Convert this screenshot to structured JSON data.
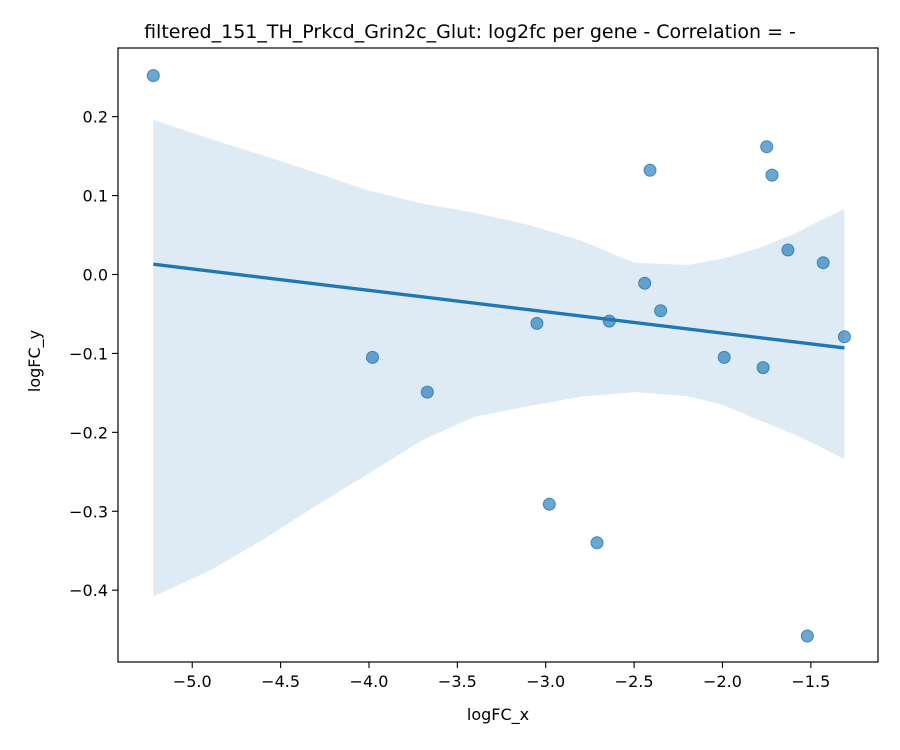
{
  "chart_data": {
    "type": "scatter",
    "title": "filtered_151_TH_Prkcd_Grin2c_Glut: log2fc per gene - Correlation = -",
    "xlabel": "logFC_x",
    "ylabel": "logFC_y",
    "xlim": [
      -5.42,
      -1.12
    ],
    "ylim": [
      -0.491,
      0.287
    ],
    "xticks": [
      -5.0,
      -4.5,
      -4.0,
      -3.5,
      -3.0,
      -2.5,
      -2.0,
      -1.5
    ],
    "xtick_labels": [
      "−5.0",
      "−4.5",
      "−4.0",
      "−3.5",
      "−3.0",
      "−2.5",
      "−2.0",
      "−1.5"
    ],
    "yticks": [
      -0.4,
      -0.3,
      -0.2,
      -0.1,
      0.0,
      0.1,
      0.2
    ],
    "ytick_labels": [
      "−0.4",
      "−0.3",
      "−0.2",
      "−0.1",
      "0.0",
      "0.1",
      "0.2"
    ],
    "grid": false,
    "series": [
      {
        "type": "scatter",
        "color": "#1f77b4",
        "x": [
          -5.22,
          -3.98,
          -3.67,
          -3.05,
          -2.98,
          -2.71,
          -2.64,
          -2.44,
          -2.41,
          -2.35,
          -1.99,
          -1.77,
          -1.75,
          -1.72,
          -1.63,
          -1.52,
          -1.43,
          -1.31
        ],
        "y": [
          0.252,
          -0.105,
          -0.149,
          -0.062,
          -0.291,
          -0.34,
          -0.059,
          -0.011,
          0.132,
          -0.046,
          -0.105,
          -0.118,
          0.162,
          0.126,
          0.031,
          -0.458,
          0.015,
          -0.079
        ]
      }
    ],
    "regression": {
      "color": "#1f77b4",
      "x": [
        -5.22,
        -1.31
      ],
      "y": [
        0.013,
        -0.093
      ]
    },
    "confidence_band": {
      "color": "#1f77b4",
      "x": [
        -5.22,
        -4.9,
        -4.6,
        -4.3,
        -4.0,
        -3.7,
        -3.4,
        -3.1,
        -2.8,
        -2.5,
        -2.2,
        -2.0,
        -1.8,
        -1.6,
        -1.45,
        -1.31
      ],
      "upper": [
        0.196,
        0.172,
        0.151,
        0.129,
        0.106,
        0.09,
        0.078,
        0.063,
        0.043,
        0.015,
        0.012,
        0.02,
        0.033,
        0.051,
        0.068,
        0.083
      ],
      "lower": [
        -0.408,
        -0.375,
        -0.336,
        -0.293,
        -0.252,
        -0.21,
        -0.18,
        -0.167,
        -0.155,
        -0.149,
        -0.154,
        -0.165,
        -0.184,
        -0.202,
        -0.218,
        -0.234
      ]
    }
  }
}
